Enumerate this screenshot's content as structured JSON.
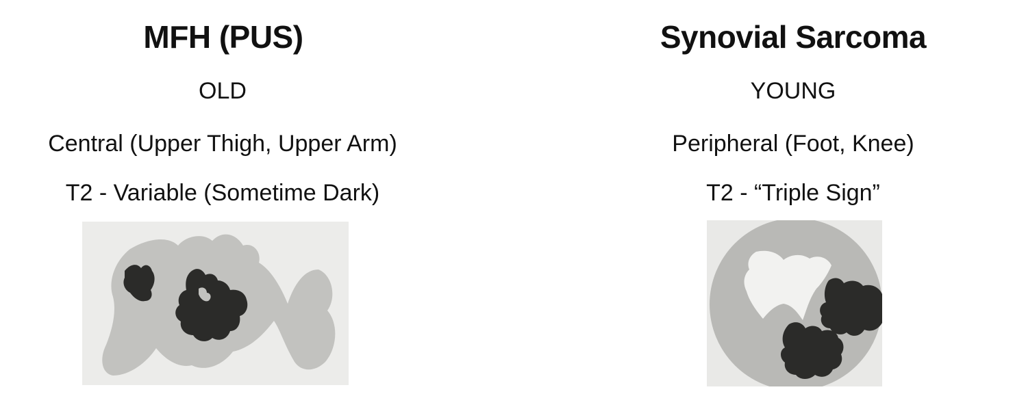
{
  "left": {
    "title": "MFH (PUS)",
    "age": "OLD",
    "location": "Central (Upper Thigh, Upper Arm)",
    "t2": "T2 - Variable (Sometime Dark)",
    "illustration": {
      "background": "#ececea",
      "gray": "#c2c2bf",
      "dark": "#2b2b29"
    }
  },
  "right": {
    "title": "Synovial Sarcoma",
    "age": "YOUNG",
    "location": "Peripheral (Foot, Knee)",
    "t2": "T2 - “Triple Sign”",
    "illustration": {
      "background": "#e9e9e7",
      "gray": "#b9b9b6",
      "light": "#f2f2f0",
      "dark": "#2b2b29"
    }
  }
}
